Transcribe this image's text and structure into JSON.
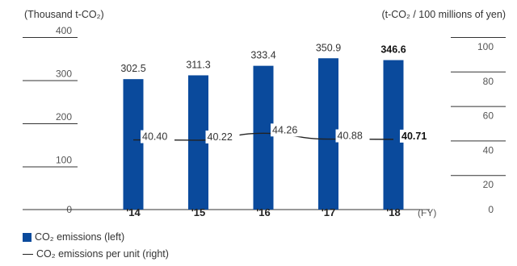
{
  "chart_data": {
    "type": "bar",
    "left_unit": "(Thousand t-CO₂)",
    "right_unit": "(t-CO₂ / 100 millions of yen)",
    "categories": [
      "'14",
      "'15",
      "'16",
      "'17",
      "'18"
    ],
    "x_suffix": "(FY)",
    "series": [
      {
        "name": "CO₂ emissions (left)",
        "kind": "bar",
        "axis": "left",
        "color": "#0a4a9c",
        "values": [
          302.5,
          311.3,
          333.4,
          350.9,
          346.6
        ],
        "labels": [
          "302.5",
          "311.3",
          "333.4",
          "350.9",
          "346.6"
        ]
      },
      {
        "name": "CO₂ emissions per unit (right)",
        "kind": "line",
        "axis": "right",
        "color": "#222222",
        "values": [
          40.4,
          40.22,
          44.26,
          40.88,
          40.71
        ],
        "labels": [
          "40.40",
          "40.22",
          "44.26",
          "40.88",
          "40.71"
        ]
      }
    ],
    "left_axis": {
      "range": [
        0,
        400
      ],
      "ticks": [
        "0",
        "100",
        "200",
        "300",
        "400"
      ]
    },
    "right_axis": {
      "range": [
        0,
        100
      ],
      "ticks": [
        "0",
        "20",
        "40",
        "60",
        "80",
        "100"
      ]
    },
    "bold_last_labels": true
  },
  "legend": {
    "bar": "CO₂ emissions (left)",
    "line": "CO₂ emissions per unit (right)"
  }
}
